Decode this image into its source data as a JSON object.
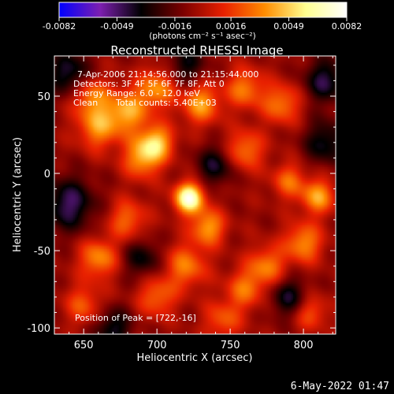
{
  "chart_data": {
    "type": "heatmap",
    "title": "Reconstructed RHESSI Image",
    "xlabel": "Heliocentric X (arcsec)",
    "ylabel": "Heliocentric Y (arcsec)",
    "x_range": [
      630,
      822
    ],
    "y_range": [
      -104,
      76
    ],
    "x_ticks": [
      650,
      700,
      750,
      800
    ],
    "y_ticks": [
      50,
      0,
      -50,
      -100
    ],
    "colorbar": {
      "ticks": [
        "-0.0082",
        "-0.0049",
        "-0.0016",
        "0.0016",
        "0.0049",
        "0.0082"
      ],
      "tick_values": [
        -0.0082,
        -0.0049,
        -0.0016,
        0.0016,
        0.0049,
        0.0082
      ],
      "range": [
        -0.0082,
        0.0082
      ],
      "label": "(photons cm⁻² s⁻¹ asec⁻²)",
      "colors": [
        "#0000ff",
        "#7d1fb0",
        "#000000",
        "#7a0000",
        "#e82000",
        "#ff8c00",
        "#ffff90",
        "#ffffff"
      ]
    },
    "annotations": {
      "time": "7-Apr-2006 21:14:56.000 to 21:15:44.000",
      "detectors": "Detectors: 3F 4F 5F 6F 7F 8F, Att 0",
      "energy": "Energy Range: 6.0 - 12.0 keV",
      "clean": "Clean",
      "counts": "Total counts: 5.40E+03",
      "peak": "Position of Peak = [722,-16]"
    },
    "peak": {
      "x": 722,
      "y": -16
    },
    "sources": [
      {
        "x": 722,
        "y": -16,
        "amp": 1.0,
        "w": 7
      },
      {
        "x": 735,
        "y": -35,
        "amp": 0.55,
        "w": 8
      },
      {
        "x": 690,
        "y": 10,
        "amp": 0.55,
        "w": 9
      },
      {
        "x": 700,
        "y": 20,
        "amp": 0.6,
        "w": 8
      },
      {
        "x": 680,
        "y": 40,
        "amp": 0.55,
        "w": 10
      },
      {
        "x": 660,
        "y": 30,
        "amp": 0.5,
        "w": 10
      },
      {
        "x": 655,
        "y": 50,
        "amp": 0.45,
        "w": 9
      },
      {
        "x": 700,
        "y": 55,
        "amp": 0.5,
        "w": 9
      },
      {
        "x": 730,
        "y": 45,
        "amp": 0.55,
        "w": 9
      },
      {
        "x": 760,
        "y": 55,
        "amp": 0.45,
        "w": 9
      },
      {
        "x": 785,
        "y": 45,
        "amp": 0.45,
        "w": 9
      },
      {
        "x": 760,
        "y": 15,
        "amp": 0.45,
        "w": 9
      },
      {
        "x": 790,
        "y": -5,
        "amp": 0.4,
        "w": 8
      },
      {
        "x": 810,
        "y": -15,
        "amp": 0.55,
        "w": 8
      },
      {
        "x": 800,
        "y": -45,
        "amp": 0.5,
        "w": 9
      },
      {
        "x": 775,
        "y": -60,
        "amp": 0.45,
        "w": 9
      },
      {
        "x": 760,
        "y": -75,
        "amp": 0.4,
        "w": 9
      },
      {
        "x": 720,
        "y": -60,
        "amp": 0.45,
        "w": 10
      },
      {
        "x": 700,
        "y": -80,
        "amp": 0.4,
        "w": 9
      },
      {
        "x": 660,
        "y": -55,
        "amp": 0.5,
        "w": 9
      },
      {
        "x": 680,
        "y": -30,
        "amp": 0.4,
        "w": 9
      },
      {
        "x": 650,
        "y": -85,
        "amp": 0.35,
        "w": 9
      },
      {
        "x": 745,
        "y": -95,
        "amp": 0.35,
        "w": 9
      },
      {
        "x": 805,
        "y": -90,
        "amp": 0.35,
        "w": 8
      },
      {
        "x": 640,
        "y": -20,
        "amp": -0.5,
        "w": 12
      },
      {
        "x": 640,
        "y": 65,
        "amp": -0.45,
        "w": 10
      },
      {
        "x": 815,
        "y": 60,
        "amp": -0.45,
        "w": 10
      },
      {
        "x": 815,
        "y": 20,
        "amp": -0.4,
        "w": 10
      },
      {
        "x": 740,
        "y": 5,
        "amp": -0.4,
        "w": 9
      },
      {
        "x": 690,
        "y": -55,
        "amp": -0.35,
        "w": 9
      },
      {
        "x": 790,
        "y": -80,
        "amp": -0.4,
        "w": 9
      },
      {
        "x": 720,
        "y": 70,
        "amp": -0.35,
        "w": 9
      },
      {
        "x": 670,
        "y": -100,
        "amp": -0.4,
        "w": 9
      }
    ]
  },
  "footer": {
    "timestamp": "6-May-2022 01:47"
  }
}
